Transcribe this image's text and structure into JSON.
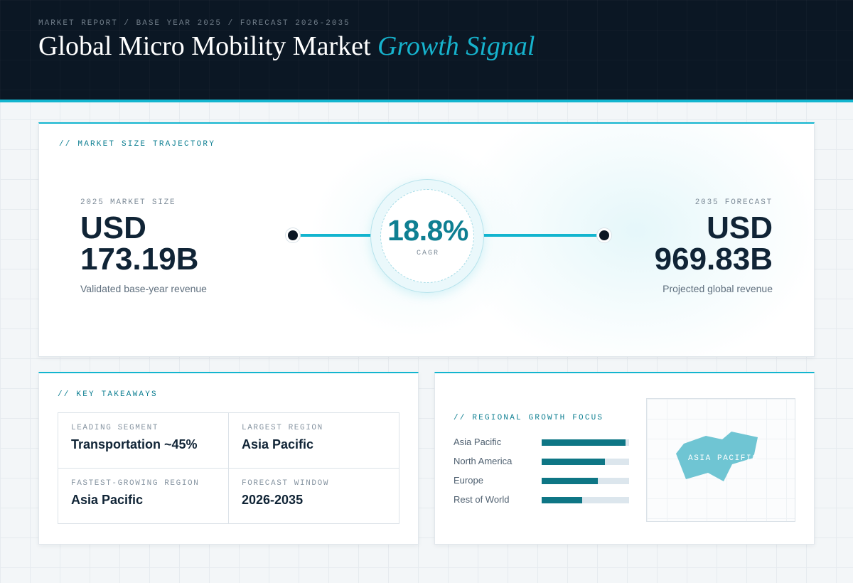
{
  "header": {
    "breadcrumb": "MARKET REPORT / BASE YEAR 2025 / FORECAST 2026-2035",
    "title_main": "Global Micro Mobility Market",
    "title_accent": "Growth Signal"
  },
  "trajectory": {
    "section_label": "// MARKET SIZE TRAJECTORY",
    "base": {
      "caption": "2025 MARKET SIZE",
      "value_line1": "USD",
      "value_line2": "173.19B",
      "sub": "Validated base-year revenue"
    },
    "cagr": {
      "value": "18.8%",
      "label": "CAGR"
    },
    "forecast": {
      "caption": "2035 FORECAST",
      "value_line1": "USD",
      "value_line2": "969.83B",
      "sub": "Projected global revenue"
    }
  },
  "takeaways": {
    "section_label": "// KEY TAKEAWAYS",
    "items": [
      {
        "label": "LEADING SEGMENT",
        "value": "Transportation ~45%"
      },
      {
        "label": "LARGEST REGION",
        "value": "Asia Pacific"
      },
      {
        "label": "FASTEST-GROWING REGION",
        "value": "Asia Pacific"
      },
      {
        "label": "FORECAST WINDOW",
        "value": "2026-2035"
      }
    ]
  },
  "regional": {
    "section_label": "// REGIONAL GROWTH FOCUS",
    "map_label": "ASIA PACIFIC",
    "map_color": "#6fc5d3"
  },
  "colors": {
    "accent": "#13b5cf",
    "bar": "#0e7685",
    "dark": "#0b1724"
  },
  "chart_data": {
    "type": "bar",
    "title": "",
    "categories": [
      "Asia Pacific",
      "North America",
      "Europe",
      "Rest of World"
    ],
    "values": [
      0.96,
      0.72,
      0.64,
      0.46
    ],
    "xlim": [
      0,
      1
    ]
  }
}
